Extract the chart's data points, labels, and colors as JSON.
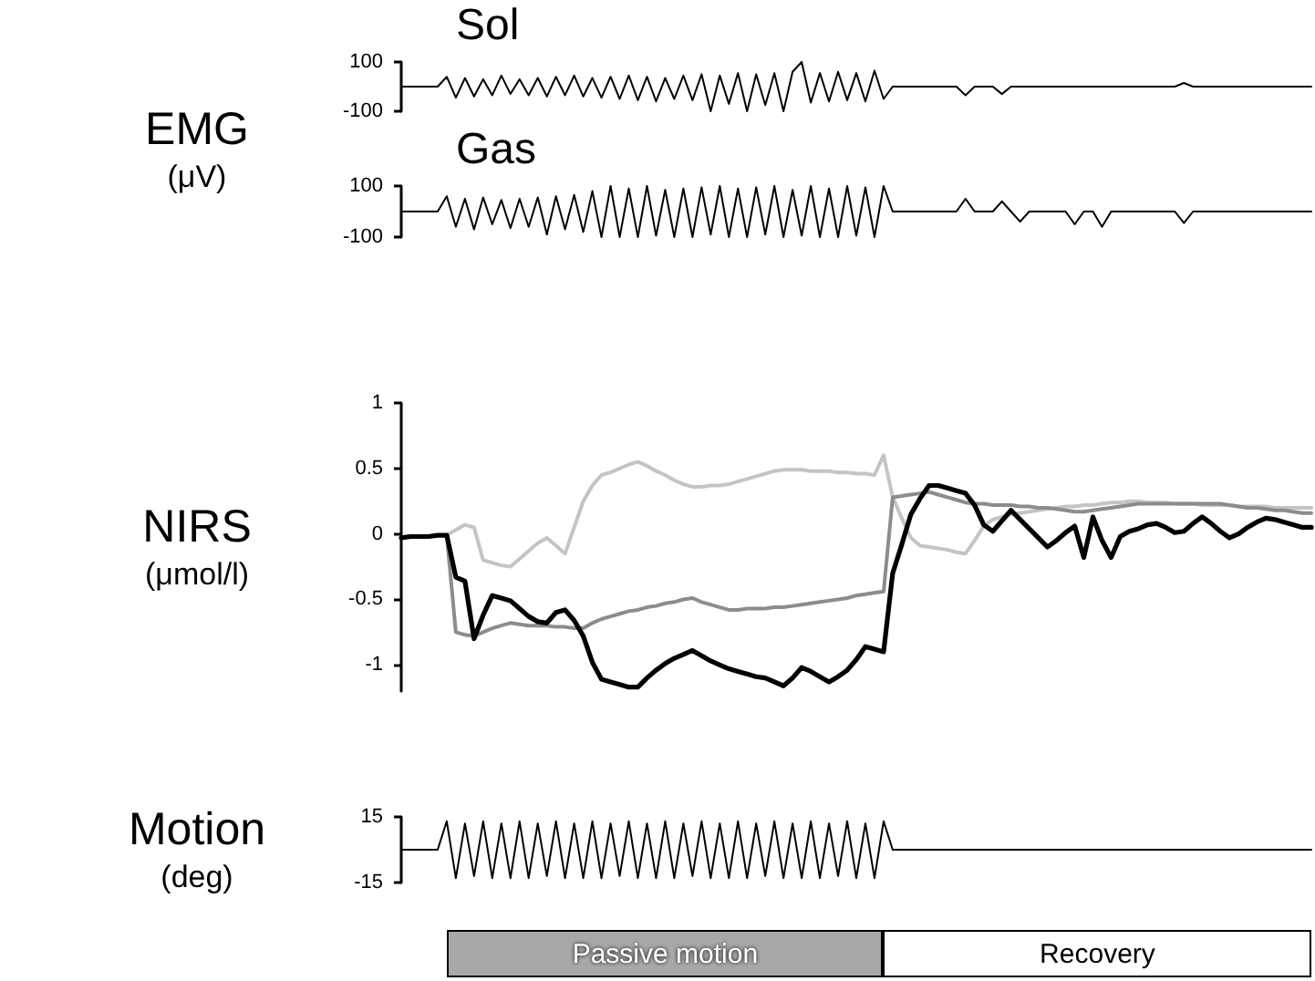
{
  "chart_data": [
    {
      "type": "line",
      "title": "Sol",
      "ylabel": "EMG (μV)",
      "tick_labels": "y",
      "marker": "none",
      "ylim": [
        -100,
        100
      ],
      "yticks": [
        -100,
        100
      ],
      "categories": [
        null,
        null,
        null,
        null,
        null,
        null,
        null,
        null,
        null,
        null,
        null,
        null,
        null,
        null,
        null,
        null,
        null,
        null,
        null,
        null,
        null,
        null,
        null,
        null,
        null,
        null,
        null,
        null,
        null,
        null,
        null,
        null,
        null,
        null,
        null,
        null,
        null,
        null,
        null,
        null,
        null,
        null,
        null,
        null,
        null,
        null,
        null,
        null,
        null,
        null,
        null,
        null,
        null,
        null,
        null,
        null,
        null,
        null,
        null,
        null,
        null,
        null,
        null,
        null,
        null,
        null,
        null,
        null,
        null,
        null,
        null,
        null,
        null,
        null,
        null,
        null,
        null,
        null,
        null,
        null,
        null,
        null,
        null,
        null,
        null,
        null,
        null,
        null,
        null,
        null,
        null,
        null,
        null,
        null,
        null,
        null,
        null,
        null,
        null,
        null,
        null
      ],
      "series": [
        {
          "color": "#000000",
          "values": [
            0,
            0,
            0,
            0,
            0,
            40,
            -45,
            35,
            -40,
            30,
            -35,
            45,
            -30,
            30,
            -35,
            35,
            -40,
            40,
            -35,
            45,
            -40,
            35,
            -45,
            40,
            -50,
            45,
            -55,
            40,
            -60,
            35,
            -50,
            45,
            -55,
            50,
            -100,
            45,
            -70,
            55,
            -100,
            50,
            -75,
            55,
            -100,
            60,
            100,
            -65,
            55,
            -60,
            60,
            -55,
            55,
            -60,
            65,
            -50,
            0,
            0,
            0,
            0,
            0,
            0,
            0,
            0,
            -35,
            0,
            0,
            0,
            -30,
            0,
            0,
            0,
            0,
            0,
            0,
            0,
            0,
            0,
            0,
            0,
            0,
            0,
            0,
            0,
            0,
            0,
            0,
            0,
            15,
            0,
            0,
            0,
            0,
            0,
            0,
            0,
            0,
            0,
            0,
            0,
            0,
            0,
            0
          ]
        }
      ]
    },
    {
      "type": "line",
      "title": "Gas",
      "tick_labels": "y",
      "marker": "none",
      "ylim": [
        -100,
        100
      ],
      "yticks": [
        -100,
        100
      ],
      "categories": [
        null,
        null,
        null,
        null,
        null,
        null,
        null,
        null,
        null,
        null,
        null,
        null,
        null,
        null,
        null,
        null,
        null,
        null,
        null,
        null,
        null,
        null,
        null,
        null,
        null,
        null,
        null,
        null,
        null,
        null,
        null,
        null,
        null,
        null,
        null,
        null,
        null,
        null,
        null,
        null,
        null,
        null,
        null,
        null,
        null,
        null,
        null,
        null,
        null,
        null,
        null,
        null,
        null,
        null,
        null,
        null,
        null,
        null,
        null,
        null,
        null,
        null,
        null,
        null,
        null,
        null,
        null,
        null,
        null,
        null,
        null,
        null,
        null,
        null,
        null,
        null,
        null,
        null,
        null,
        null,
        null,
        null,
        null,
        null,
        null,
        null,
        null,
        null,
        null,
        null,
        null,
        null,
        null,
        null,
        null,
        null,
        null,
        null,
        null,
        null,
        null
      ],
      "series": [
        {
          "color": "#000000",
          "values": [
            0,
            0,
            0,
            0,
            0,
            60,
            -60,
            50,
            -70,
            55,
            -50,
            45,
            -65,
            50,
            -60,
            55,
            -90,
            60,
            -70,
            65,
            -80,
            80,
            -100,
            100,
            -100,
            90,
            -100,
            100,
            -95,
            85,
            -100,
            90,
            -100,
            95,
            -90,
            100,
            -100,
            90,
            -100,
            95,
            -90,
            100,
            -100,
            85,
            -95,
            100,
            -100,
            90,
            -100,
            100,
            -95,
            95,
            -100,
            100,
            0,
            0,
            0,
            0,
            0,
            0,
            0,
            0,
            50,
            0,
            0,
            0,
            40,
            0,
            -40,
            0,
            0,
            0,
            0,
            0,
            -50,
            0,
            0,
            -60,
            0,
            0,
            0,
            0,
            0,
            0,
            0,
            0,
            -45,
            0,
            0,
            0,
            0,
            0,
            0,
            0,
            0,
            0,
            0,
            0,
            0,
            0,
            0
          ]
        }
      ]
    },
    {
      "type": "line",
      "ylabel": "NIRS (μmol/l)",
      "tick_labels": "y",
      "marker": "none",
      "ylim": [
        -1.2,
        1
      ],
      "yticks": [
        -1,
        -0.5,
        0,
        0.5,
        1
      ],
      "categories": [
        null,
        null,
        null,
        null,
        null,
        null,
        null,
        null,
        null,
        null,
        null,
        null,
        null,
        null,
        null,
        null,
        null,
        null,
        null,
        null,
        null,
        null,
        null,
        null,
        null,
        null,
        null,
        null,
        null,
        null,
        null,
        null,
        null,
        null,
        null,
        null,
        null,
        null,
        null,
        null,
        null,
        null,
        null,
        null,
        null,
        null,
        null,
        null,
        null,
        null,
        null,
        null,
        null,
        null,
        null,
        null,
        null,
        null,
        null,
        null,
        null,
        null,
        null,
        null,
        null,
        null,
        null,
        null,
        null,
        null,
        null,
        null,
        null,
        null,
        null,
        null,
        null,
        null,
        null,
        null,
        null,
        null,
        null,
        null,
        null,
        null,
        null,
        null,
        null,
        null,
        null,
        null,
        null,
        null,
        null,
        null,
        null,
        null,
        null,
        null,
        null
      ],
      "series": [
        {
          "color": "#c4c4c4",
          "values": [
            -0.03,
            -0.02,
            -0.02,
            -0.02,
            -0.01,
            -0.01,
            0.03,
            0.07,
            0.05,
            -0.2,
            -0.22,
            -0.24,
            -0.25,
            -0.19,
            -0.13,
            -0.07,
            -0.03,
            -0.09,
            -0.15,
            0.05,
            0.25,
            0.37,
            0.45,
            0.47,
            0.5,
            0.53,
            0.55,
            0.52,
            0.48,
            0.45,
            0.41,
            0.38,
            0.36,
            0.36,
            0.37,
            0.37,
            0.38,
            0.4,
            0.42,
            0.44,
            0.46,
            0.48,
            0.49,
            0.49,
            0.49,
            0.48,
            0.48,
            0.48,
            0.47,
            0.47,
            0.46,
            0.46,
            0.45,
            0.6,
            0.28,
            0.12,
            -0.03,
            -0.09,
            -0.1,
            -0.11,
            -0.12,
            -0.14,
            -0.15,
            -0.05,
            0.06,
            0.11,
            0.13,
            0.15,
            0.16,
            0.17,
            0.18,
            0.19,
            0.2,
            0.21,
            0.21,
            0.22,
            0.22,
            0.23,
            0.24,
            0.24,
            0.25,
            0.25,
            0.24,
            0.24,
            0.24,
            0.23,
            0.23,
            0.23,
            0.22,
            0.22,
            0.22,
            0.22,
            0.21,
            0.21,
            0.21,
            0.21,
            0.2,
            0.2,
            0.2,
            0.2,
            0.2
          ]
        },
        {
          "color": "#8c8c8c",
          "values": [
            -0.03,
            -0.02,
            -0.02,
            -0.02,
            -0.01,
            -0.01,
            -0.75,
            -0.77,
            -0.78,
            -0.75,
            -0.72,
            -0.7,
            -0.68,
            -0.69,
            -0.7,
            -0.7,
            -0.7,
            -0.71,
            -0.71,
            -0.72,
            -0.72,
            -0.68,
            -0.65,
            -0.63,
            -0.61,
            -0.59,
            -0.58,
            -0.56,
            -0.55,
            -0.53,
            -0.52,
            -0.5,
            -0.49,
            -0.52,
            -0.54,
            -0.56,
            -0.58,
            -0.58,
            -0.57,
            -0.57,
            -0.57,
            -0.56,
            -0.56,
            -0.55,
            -0.54,
            -0.53,
            -0.52,
            -0.51,
            -0.5,
            -0.49,
            -0.47,
            -0.46,
            -0.45,
            -0.44,
            0.28,
            0.29,
            0.3,
            0.31,
            0.32,
            0.3,
            0.28,
            0.26,
            0.24,
            0.23,
            0.23,
            0.22,
            0.22,
            0.22,
            0.21,
            0.21,
            0.2,
            0.2,
            0.19,
            0.18,
            0.17,
            0.17,
            0.18,
            0.19,
            0.2,
            0.21,
            0.22,
            0.23,
            0.23,
            0.23,
            0.23,
            0.23,
            0.23,
            0.23,
            0.23,
            0.23,
            0.23,
            0.22,
            0.21,
            0.2,
            0.2,
            0.19,
            0.18,
            0.18,
            0.17,
            0.16,
            0.16
          ]
        },
        {
          "color": "#000000",
          "values": [
            -0.03,
            -0.02,
            -0.02,
            -0.02,
            -0.01,
            -0.01,
            -0.33,
            -0.36,
            -0.8,
            -0.62,
            -0.47,
            -0.49,
            -0.51,
            -0.57,
            -0.63,
            -0.67,
            -0.68,
            -0.6,
            -0.58,
            -0.66,
            -0.78,
            -0.98,
            -1.11,
            -1.13,
            -1.15,
            -1.17,
            -1.17,
            -1.1,
            -1.04,
            -0.99,
            -0.95,
            -0.92,
            -0.89,
            -0.93,
            -0.97,
            -1,
            -1.03,
            -1.05,
            -1.07,
            -1.09,
            -1.1,
            -1.13,
            -1.16,
            -1.1,
            -1.02,
            -1.05,
            -1.09,
            -1.13,
            -1.09,
            -1.04,
            -0.96,
            -0.86,
            -0.88,
            -0.9,
            -0.3,
            -0.08,
            0.15,
            0.27,
            0.37,
            0.37,
            0.35,
            0.33,
            0.31,
            0.22,
            0.07,
            0.02,
            0.1,
            0.18,
            0.11,
            0.04,
            -0.03,
            -0.1,
            -0.05,
            0.01,
            0.06,
            -0.18,
            0.13,
            -0.05,
            -0.18,
            -0.02,
            0.02,
            0.04,
            0.07,
            0.08,
            0.05,
            0.01,
            0.02,
            0.08,
            0.13,
            0.08,
            0.02,
            -0.03,
            0,
            0.05,
            0.09,
            0.12,
            0.11,
            0.09,
            0.07,
            0.05,
            0.05
          ]
        }
      ]
    },
    {
      "type": "line",
      "ylabel": "Motion (deg)",
      "tick_labels": "y",
      "marker": "none",
      "ylim": [
        -15,
        15
      ],
      "yticks": [
        -15,
        15
      ],
      "annotations": [
        "Passive motion",
        "Recovery"
      ],
      "categories": [
        null,
        null,
        null,
        null,
        null,
        null,
        null,
        null,
        null,
        null,
        null,
        null,
        null,
        null,
        null,
        null,
        null,
        null,
        null,
        null,
        null,
        null,
        null,
        null,
        null,
        null,
        null,
        null,
        null,
        null,
        null,
        null,
        null,
        null,
        null,
        null,
        null,
        null,
        null,
        null,
        null,
        null,
        null,
        null,
        null,
        null,
        null,
        null,
        null,
        null,
        null,
        null,
        null,
        null,
        null,
        null,
        null,
        null,
        null,
        null,
        null,
        null,
        null,
        null,
        null,
        null,
        null,
        null,
        null,
        null,
        null,
        null,
        null,
        null,
        null,
        null,
        null,
        null,
        null,
        null,
        null,
        null,
        null,
        null,
        null,
        null,
        null,
        null,
        null,
        null,
        null,
        null,
        null,
        null,
        null,
        null,
        null,
        null,
        null,
        null,
        null
      ],
      "series": [
        {
          "color": "#000000",
          "values": [
            0,
            0,
            0,
            0,
            0,
            13,
            -13,
            12,
            -12,
            13,
            -13,
            12,
            -13,
            13,
            -13,
            12,
            -12,
            13,
            -13,
            12,
            -13,
            13,
            -13,
            12,
            -12,
            13,
            -13,
            12,
            -13,
            13,
            -13,
            12,
            -12,
            13,
            -13,
            12,
            -13,
            13,
            -13,
            12,
            -12,
            13,
            -13,
            12,
            -13,
            13,
            -13,
            12,
            -12,
            13,
            -13,
            12,
            -13,
            13,
            0,
            0,
            0,
            0,
            0,
            0,
            0,
            0,
            0,
            0,
            0,
            0,
            0,
            0,
            0,
            0,
            0,
            0,
            0,
            0,
            0,
            0,
            0,
            0,
            0,
            0,
            0,
            0,
            0,
            0,
            0,
            0,
            0,
            0,
            0,
            0,
            0,
            0,
            0,
            0,
            0,
            0,
            0,
            0,
            0,
            0,
            0
          ]
        }
      ]
    }
  ]
}
